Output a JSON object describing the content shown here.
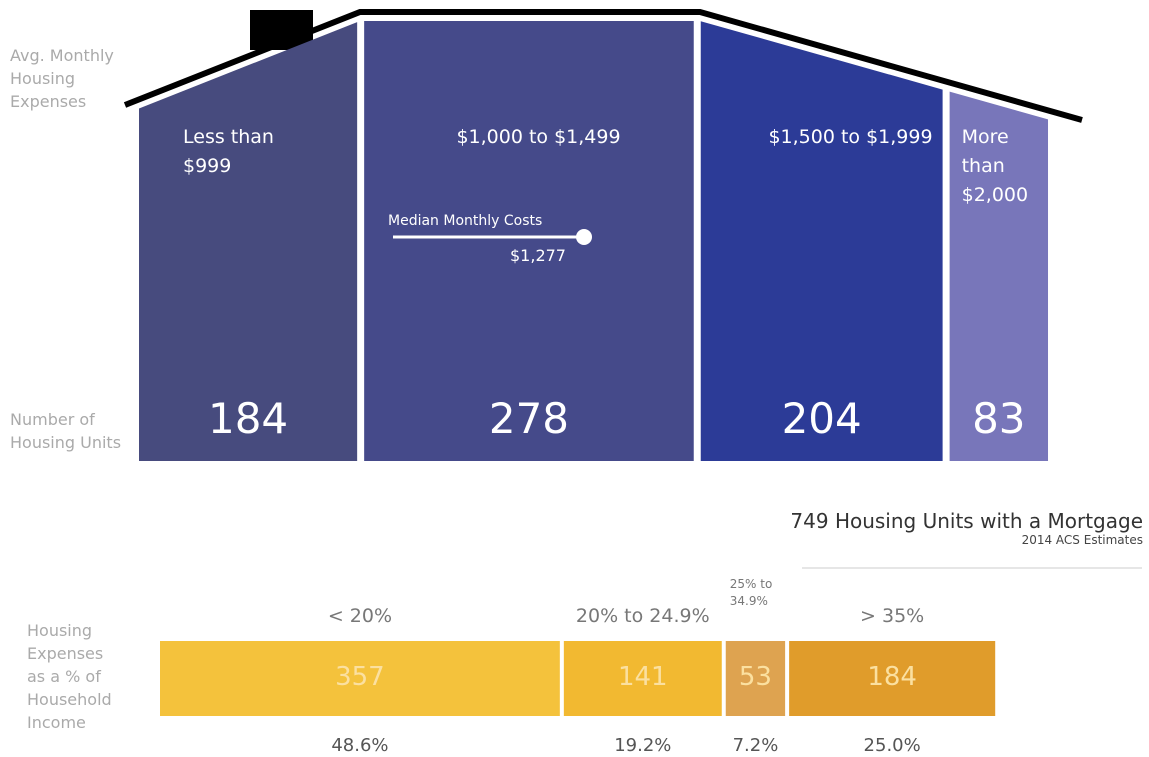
{
  "house": {
    "row_labels": [
      "Avg. Monthly Housing Expenses",
      "Number of Housing Units"
    ],
    "segments": [
      {
        "label": "Less than $999",
        "value": 184,
        "color": "#474b7e"
      },
      {
        "label": "$1,000 to $1,499",
        "value": 278,
        "color": "#454a8a"
      },
      {
        "label": "$1,500 to $1,999",
        "value": 204,
        "color": "#2c3b97"
      },
      {
        "label": "More than $2,000",
        "value": 83,
        "color": "#7876ba"
      }
    ],
    "median": {
      "label": "Median Monthly Costs",
      "value_label": "$1,277"
    }
  },
  "summary": {
    "title": "749 Housing Units with a Mortgage",
    "subtitle": "2014 ACS Estimates"
  },
  "income": {
    "row_label": "Housing Expenses as a % of Household Income",
    "segments": [
      {
        "label": "< 20%",
        "value": 357,
        "percent_label": "48.6%",
        "color": "#f4c23c"
      },
      {
        "label": "20% to 24.9%",
        "value": 141,
        "percent_label": "19.2%",
        "color": "#f2b931"
      },
      {
        "label": "25% to 34.9%",
        "value": 53,
        "percent_label": "7.2%",
        "color": "#dea350"
      },
      {
        "label": "> 35%",
        "value": 184,
        "percent_label": "25.0%",
        "color": "#e09c2b"
      }
    ]
  }
}
